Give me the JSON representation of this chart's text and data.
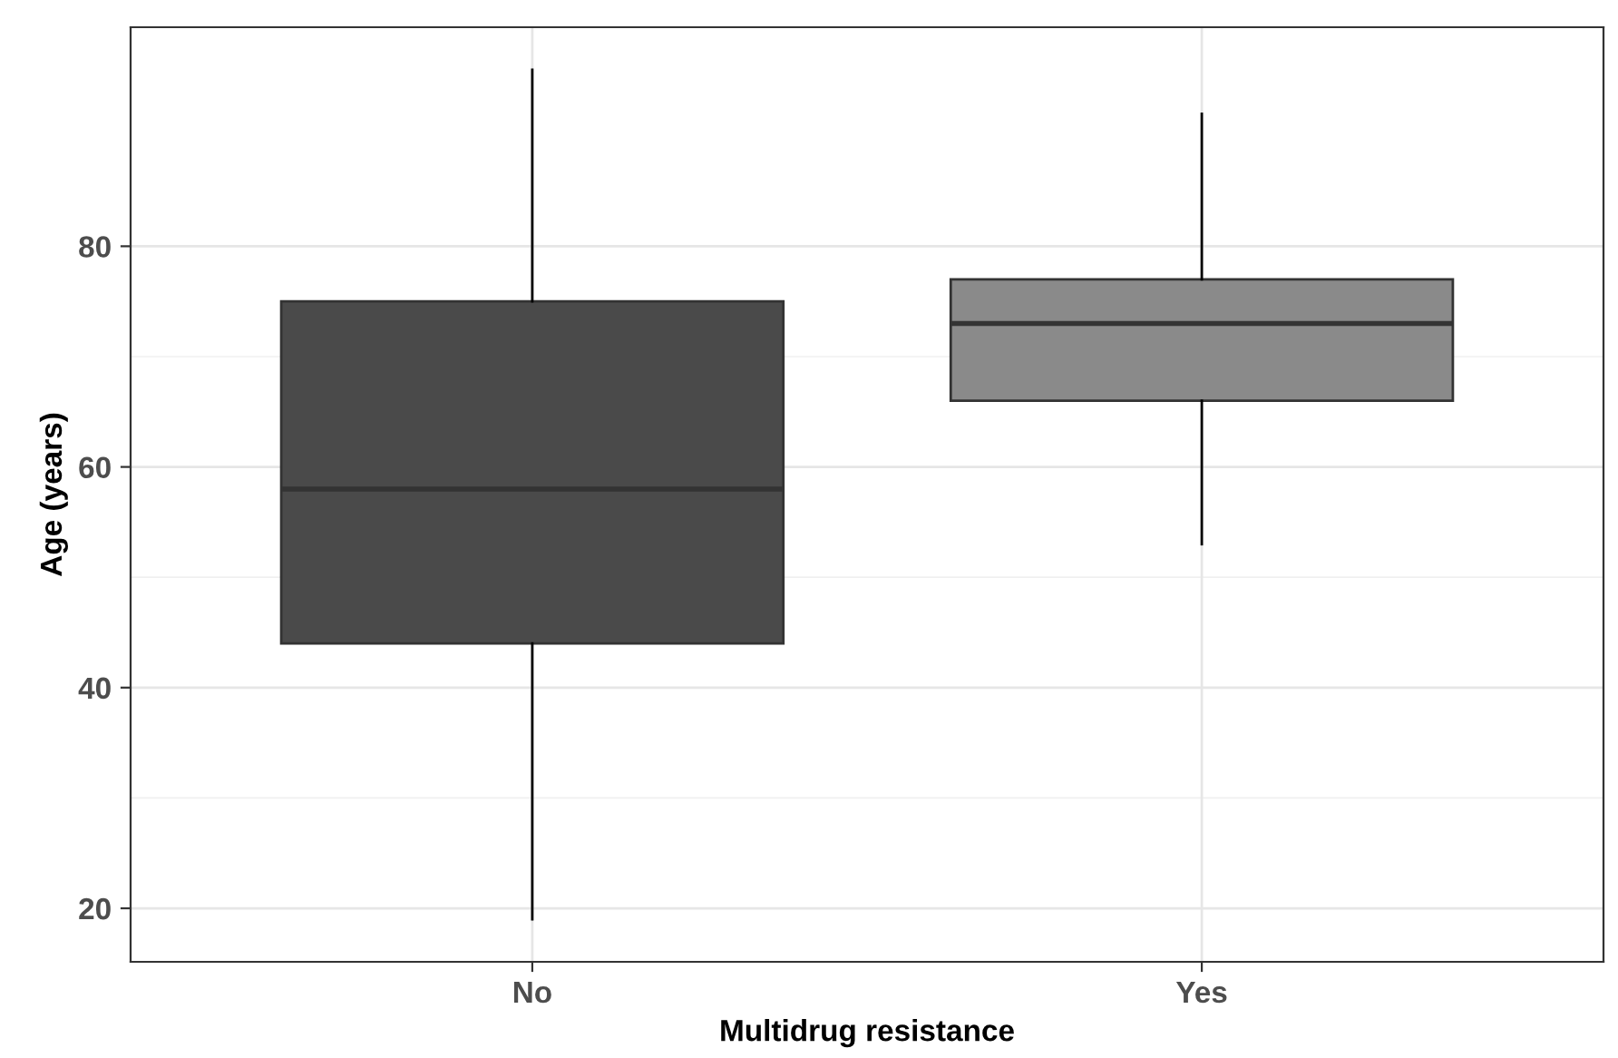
{
  "chart_data": {
    "type": "box",
    "xlabel": "Multidrug resistance",
    "ylabel": "Age (years)",
    "categories": [
      "No",
      "Yes"
    ],
    "boxes": [
      {
        "low": 19,
        "q1": 44,
        "median": 58,
        "q3": 75,
        "high": 96
      },
      {
        "low": 53,
        "q1": 66,
        "median": 73,
        "q3": 77,
        "high": 92
      }
    ],
    "colors": [
      "#4a4a4a",
      "#8a8a8a"
    ],
    "ylim": [
      15.15,
      99.85
    ],
    "yticks": [
      20,
      40,
      60,
      80
    ],
    "grid": true,
    "legend": false
  }
}
